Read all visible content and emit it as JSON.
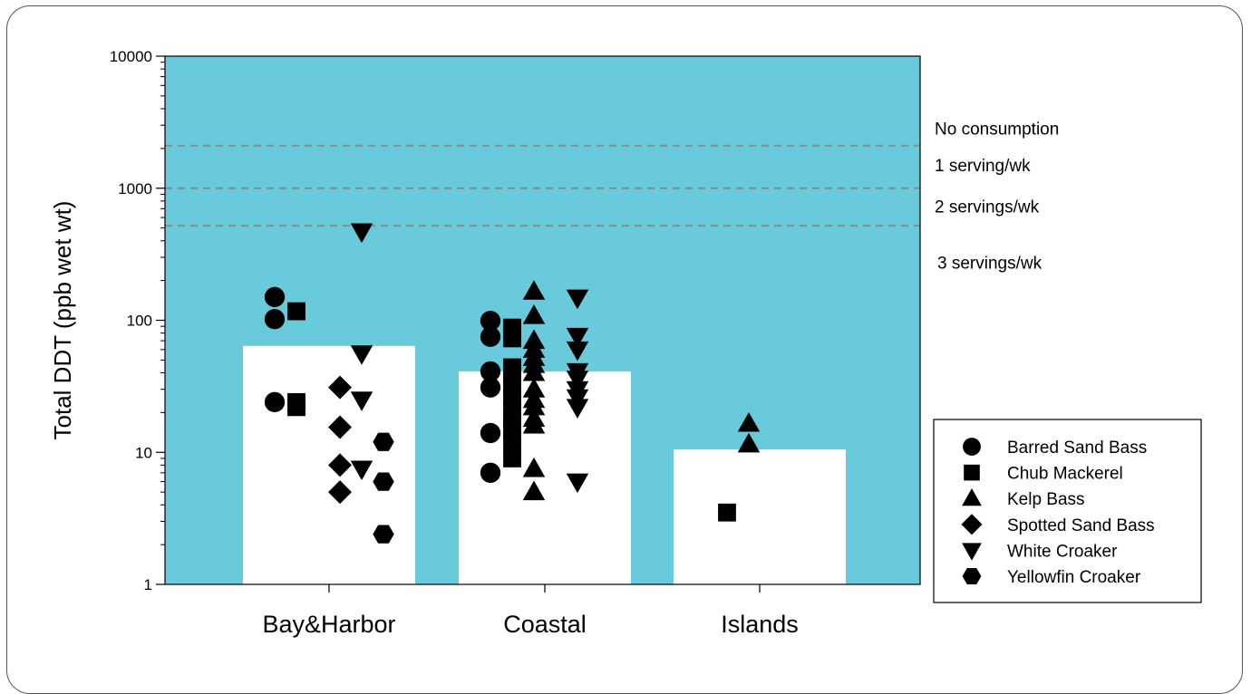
{
  "chart_data": {
    "type": "bar",
    "title": "",
    "xlabel": "",
    "ylabel": "Total DDT (ppb wet wt)",
    "yscale": "log",
    "ylim": [
      1,
      10000
    ],
    "yticks": [
      1,
      10,
      100,
      1000,
      10000
    ],
    "ytick_labels": [
      "1",
      "10",
      "100",
      "1000",
      "10000"
    ],
    "categories": [
      "Bay&Harbor",
      "Coastal",
      "Islands"
    ],
    "bar_values": [
      64,
      41,
      10.5
    ],
    "background_color": "#69cadc",
    "bar_color": "#ffffff",
    "reference_lines": [
      {
        "value": 2100,
        "style": "dashed"
      },
      {
        "value": 1000,
        "style": "dashed"
      },
      {
        "value": 520,
        "style": "dashed"
      }
    ],
    "advisory_labels": [
      {
        "label": "No consumption",
        "at": 2800
      },
      {
        "label": "1 serving/wk",
        "at": 1480
      },
      {
        "label": "2 servings/wk",
        "at": 720
      },
      {
        "label": "3 servings/wk",
        "at": 270
      }
    ],
    "legend_position": "bottom-right",
    "series": [
      {
        "name": "Barred Sand Bass",
        "marker": "circle",
        "points": [
          {
            "category": "Bay&Harbor",
            "y": 150
          },
          {
            "category": "Bay&Harbor",
            "y": 102
          },
          {
            "category": "Bay&Harbor",
            "y": 24
          },
          {
            "category": "Coastal",
            "y": 99
          },
          {
            "category": "Coastal",
            "y": 75
          },
          {
            "category": "Coastal",
            "y": 41
          },
          {
            "category": "Coastal",
            "y": 31
          },
          {
            "category": "Coastal",
            "y": 14
          },
          {
            "category": "Coastal",
            "y": 7
          }
        ]
      },
      {
        "name": "Chub Mackerel",
        "marker": "square",
        "points": [
          {
            "category": "Bay&Harbor",
            "y": 117
          },
          {
            "category": "Bay&Harbor",
            "y": 24
          },
          {
            "category": "Bay&Harbor",
            "y": 22
          },
          {
            "category": "Coastal",
            "y": 88
          },
          {
            "category": "Coastal",
            "y": 80
          },
          {
            "category": "Coastal",
            "y": 73
          },
          {
            "category": "Coastal",
            "y": 44
          },
          {
            "category": "Coastal",
            "y": 38
          },
          {
            "category": "Coastal",
            "y": 31
          },
          {
            "category": "Coastal",
            "y": 26
          },
          {
            "category": "Coastal",
            "y": 21
          },
          {
            "category": "Coastal",
            "y": 18
          },
          {
            "category": "Coastal",
            "y": 15
          },
          {
            "category": "Coastal",
            "y": 12
          },
          {
            "category": "Coastal",
            "y": 9
          },
          {
            "category": "Islands",
            "y": 3.5
          }
        ]
      },
      {
        "name": "Kelp Bass",
        "marker": "triangle-up",
        "points": [
          {
            "category": "Coastal",
            "y": 165
          },
          {
            "category": "Coastal",
            "y": 108
          },
          {
            "category": "Coastal",
            "y": 70
          },
          {
            "category": "Coastal",
            "y": 60
          },
          {
            "category": "Coastal",
            "y": 52
          },
          {
            "category": "Coastal",
            "y": 46
          },
          {
            "category": "Coastal",
            "y": 40
          },
          {
            "category": "Coastal",
            "y": 30
          },
          {
            "category": "Coastal",
            "y": 25
          },
          {
            "category": "Coastal",
            "y": 22
          },
          {
            "category": "Coastal",
            "y": 18
          },
          {
            "category": "Coastal",
            "y": 16
          },
          {
            "category": "Coastal",
            "y": 7.5
          },
          {
            "category": "Coastal",
            "y": 5
          },
          {
            "category": "Islands",
            "y": 16.5
          },
          {
            "category": "Islands",
            "y": 11.5
          }
        ]
      },
      {
        "name": "Spotted Sand Bass",
        "marker": "diamond",
        "points": [
          {
            "category": "Bay&Harbor",
            "y": 31
          },
          {
            "category": "Bay&Harbor",
            "y": 15.5
          },
          {
            "category": "Bay&Harbor",
            "y": 8
          },
          {
            "category": "Bay&Harbor",
            "y": 5
          }
        ]
      },
      {
        "name": "White Croaker",
        "marker": "triangle-down",
        "points": [
          {
            "category": "Bay&Harbor",
            "y": 470
          },
          {
            "category": "Bay&Harbor",
            "y": 56
          },
          {
            "category": "Bay&Harbor",
            "y": 25
          },
          {
            "category": "Bay&Harbor",
            "y": 7.5
          },
          {
            "category": "Coastal",
            "y": 148
          },
          {
            "category": "Coastal",
            "y": 76
          },
          {
            "category": "Coastal",
            "y": 60
          },
          {
            "category": "Coastal",
            "y": 41
          },
          {
            "category": "Coastal",
            "y": 36
          },
          {
            "category": "Coastal",
            "y": 30
          },
          {
            "category": "Coastal",
            "y": 26
          },
          {
            "category": "Coastal",
            "y": 22
          },
          {
            "category": "Coastal",
            "y": 6
          }
        ]
      },
      {
        "name": "Yellowfin Croaker",
        "marker": "hexagon",
        "points": [
          {
            "category": "Bay&Harbor",
            "y": 12
          },
          {
            "category": "Bay&Harbor",
            "y": 6
          },
          {
            "category": "Bay&Harbor",
            "y": 2.4
          }
        ]
      }
    ]
  }
}
